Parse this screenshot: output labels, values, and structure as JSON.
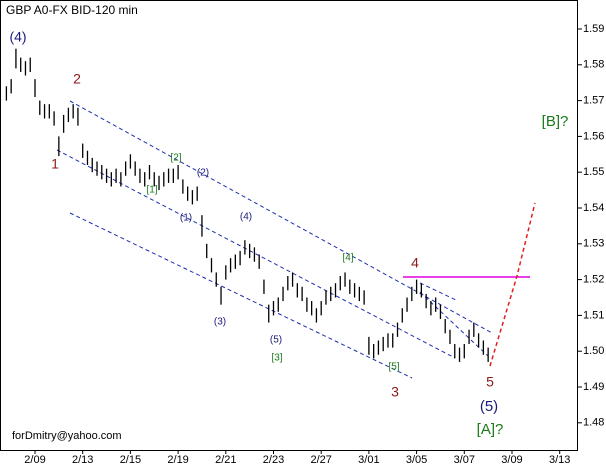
{
  "chart_data": {
    "type": "hilo",
    "title": "GBP A0-FX BID-120 min",
    "watermark": "forDmitry@yahoo.com",
    "color": "#000000",
    "x": [
      -6,
      -5,
      -4,
      -3,
      -2,
      -1,
      0,
      1,
      2,
      3,
      4,
      5,
      6,
      7,
      8,
      9,
      10,
      11,
      12,
      13,
      14,
      15,
      16,
      17,
      18,
      19,
      20,
      21,
      22,
      23,
      24,
      25,
      26,
      27,
      28,
      29,
      30,
      31,
      32,
      33,
      34,
      35,
      36,
      37,
      38,
      39,
      40,
      41,
      42,
      43,
      44,
      45,
      46,
      47,
      48,
      49,
      50,
      51,
      52,
      53,
      54,
      55,
      56,
      57,
      58,
      59,
      60,
      61,
      62,
      63,
      64,
      65,
      66,
      67,
      68,
      69,
      70,
      71,
      72,
      73,
      74,
      75,
      76,
      77,
      78,
      79,
      80,
      81,
      82,
      83,
      84,
      85,
      86,
      87,
      88,
      89,
      90,
      91,
      92,
      93,
      94,
      95
    ],
    "high": [
      1.574,
      1.576,
      1.5845,
      1.582,
      1.581,
      1.582,
      1.576,
      1.57,
      1.569,
      1.569,
      1.567,
      1.56,
      1.566,
      1.568,
      1.569,
      1.568,
      1.558,
      1.556,
      1.554,
      1.553,
      1.552,
      1.551,
      1.55,
      1.551,
      1.55,
      1.553,
      1.555,
      1.553,
      1.551,
      1.55,
      1.552,
      1.55,
      1.549,
      1.55,
      1.551,
      1.551,
      1.552,
      1.548,
      1.546,
      1.545,
      1.546,
      1.538,
      1.53,
      1.526,
      1.522,
      1.518,
      1.524,
      1.526,
      1.527,
      1.528,
      1.531,
      1.53,
      1.529,
      1.527,
      1.52,
      1.513,
      1.514,
      1.515,
      1.518,
      1.521,
      1.522,
      1.519,
      1.518,
      1.515,
      1.514,
      1.512,
      1.514,
      1.517,
      1.518,
      1.519,
      1.521,
      1.522,
      1.52,
      1.519,
      1.518,
      1.517,
      1.504,
      1.502,
      1.503,
      1.504,
      1.505,
      1.505,
      1.508,
      1.512,
      1.515,
      1.518,
      1.52,
      1.519,
      1.516,
      1.514,
      1.515,
      1.513,
      1.509,
      1.506,
      1.502,
      1.501,
      1.502,
      1.506,
      1.508,
      1.505,
      1.503,
      1.501
    ],
    "low": [
      1.57,
      1.572,
      1.579,
      1.578,
      1.577,
      1.578,
      1.571,
      1.566,
      1.565,
      1.565,
      1.563,
      1.5545,
      1.561,
      1.564,
      1.565,
      1.563,
      1.554,
      1.552,
      1.55,
      1.549,
      1.548,
      1.547,
      1.546,
      1.547,
      1.546,
      1.549,
      1.551,
      1.549,
      1.547,
      1.546,
      1.548,
      1.546,
      1.545,
      1.546,
      1.547,
      1.547,
      1.548,
      1.544,
      1.542,
      1.541,
      1.542,
      1.532,
      1.526,
      1.522,
      1.518,
      1.513,
      1.52,
      1.522,
      1.523,
      1.524,
      1.527,
      1.526,
      1.525,
      1.523,
      1.516,
      1.508,
      1.51,
      1.511,
      1.514,
      1.517,
      1.518,
      1.515,
      1.514,
      1.511,
      1.51,
      1.508,
      1.51,
      1.513,
      1.514,
      1.515,
      1.517,
      1.518,
      1.516,
      1.515,
      1.514,
      1.513,
      1.499,
      1.498,
      1.499,
      1.5,
      1.501,
      1.501,
      1.504,
      1.508,
      1.511,
      1.514,
      1.516,
      1.515,
      1.512,
      1.51,
      1.511,
      1.509,
      1.505,
      1.502,
      1.498,
      1.497,
      1.498,
      1.502,
      1.504,
      1.501,
      1.499,
      1.497
    ],
    "xlim": [
      -7.34,
      113.84
    ],
    "ylim": [
      1.4724,
      1.5981
    ],
    "xticks": [
      {
        "value": 0,
        "label": "2/09"
      },
      {
        "value": 10,
        "label": "2/13"
      },
      {
        "value": 20,
        "label": "2/15"
      },
      {
        "value": 30,
        "label": "2/19"
      },
      {
        "value": 40,
        "label": "2/21"
      },
      {
        "value": 50,
        "label": "2/23"
      },
      {
        "value": 60,
        "label": "2/27"
      },
      {
        "value": 70,
        "label": "3/01"
      },
      {
        "value": 80,
        "label": "3/05"
      },
      {
        "value": 90,
        "label": "3/07"
      },
      {
        "value": 100,
        "label": "3/09"
      },
      {
        "value": 110,
        "label": "3/13"
      }
    ],
    "yticks": [
      1.48,
      1.49,
      {
        "value": 1.5,
        "label": "1.50"
      },
      1.51,
      1.52,
      1.53,
      1.54,
      1.55,
      1.56,
      1.57,
      1.58,
      1.59
    ],
    "annotations": [
      {
        "text": "(4)",
        "color": "#1a1a7a"
      },
      {
        "text": "2",
        "color": "#8b1a1a"
      },
      {
        "text": "1",
        "color": "#8b1a1a"
      },
      {
        "text": "[2]",
        "color": "#1a7a1a"
      },
      {
        "text": "(2)",
        "color": "#1a1a7a"
      },
      {
        "text": "[1]",
        "color": "#1a7a1a"
      },
      {
        "text": "(1)",
        "color": "#1a1a7a"
      },
      {
        "text": "(4)",
        "color": "#1a1a7a"
      },
      {
        "text": "(3)",
        "color": "#1a1a7a"
      },
      {
        "text": "(5)",
        "color": "#1a1a7a"
      },
      {
        "text": "[3]",
        "color": "#1a7a1a"
      },
      {
        "text": "[4]",
        "color": "#1a7a1a"
      },
      {
        "text": "4",
        "color": "#8b1a1a"
      },
      {
        "text": "[5]",
        "color": "#1a7a1a"
      },
      {
        "text": "3",
        "color": "#8b1a1a"
      },
      {
        "text": "5",
        "color": "#8b1a1a"
      },
      {
        "text": "(5)",
        "color": "#1a1a7a"
      },
      {
        "text": "[A]?",
        "color": "#1a7a1a"
      },
      {
        "text": "[B]?",
        "color": "#1a7a1a"
      }
    ]
  }
}
